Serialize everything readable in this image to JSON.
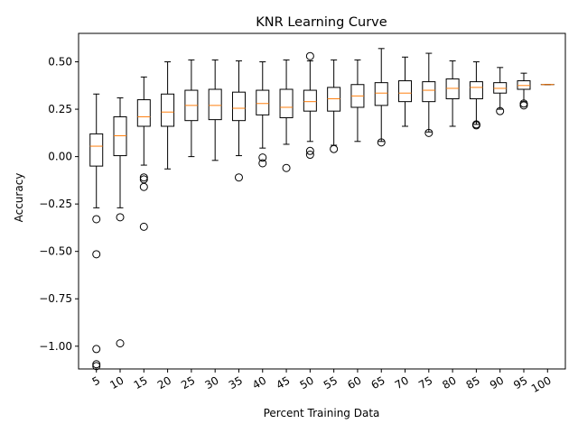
{
  "chart_data": {
    "type": "boxplot",
    "title": "KNR Learning Curve",
    "xlabel": "Percent Training Data",
    "ylabel": "Accuracy",
    "ylim": [
      -1.12,
      0.65
    ],
    "yticks": [
      0.5,
      0.25,
      0.0,
      -0.25,
      -0.5,
      -0.75,
      -1.0
    ],
    "ytick_labels": [
      "0.50",
      "0.25",
      "0.00",
      "−0.25",
      "−0.50",
      "−0.75",
      "−1.00"
    ],
    "categories": [
      "5",
      "10",
      "15",
      "20",
      "25",
      "30",
      "35",
      "40",
      "45",
      "50",
      "55",
      "60",
      "65",
      "70",
      "75",
      "80",
      "85",
      "90",
      "95",
      "100"
    ],
    "boxes": [
      {
        "whislo": -0.27,
        "q1": -0.05,
        "med": 0.055,
        "q3": 0.12,
        "whishi": 0.33,
        "fliers": [
          -0.33,
          -0.515,
          -1.015,
          -1.095,
          -1.105
        ]
      },
      {
        "whislo": -0.27,
        "q1": 0.005,
        "med": 0.11,
        "q3": 0.21,
        "whishi": 0.31,
        "fliers": [
          -0.32,
          -0.985
        ]
      },
      {
        "whislo": -0.045,
        "q1": 0.16,
        "med": 0.21,
        "q3": 0.3,
        "whishi": 0.42,
        "fliers": [
          -0.11,
          -0.12,
          -0.16,
          -0.37
        ]
      },
      {
        "whislo": -0.065,
        "q1": 0.16,
        "med": 0.235,
        "q3": 0.33,
        "whishi": 0.5,
        "fliers": []
      },
      {
        "whislo": 0.0,
        "q1": 0.19,
        "med": 0.27,
        "q3": 0.35,
        "whishi": 0.51,
        "fliers": []
      },
      {
        "whislo": -0.02,
        "q1": 0.195,
        "med": 0.27,
        "q3": 0.355,
        "whishi": 0.51,
        "fliers": []
      },
      {
        "whislo": 0.005,
        "q1": 0.19,
        "med": 0.255,
        "q3": 0.34,
        "whishi": 0.505,
        "fliers": [
          -0.11
        ]
      },
      {
        "whislo": 0.045,
        "q1": 0.22,
        "med": 0.28,
        "q3": 0.35,
        "whishi": 0.5,
        "fliers": [
          -0.005,
          -0.035
        ]
      },
      {
        "whislo": 0.065,
        "q1": 0.205,
        "med": 0.26,
        "q3": 0.355,
        "whishi": 0.51,
        "fliers": [
          -0.06
        ]
      },
      {
        "whislo": 0.08,
        "q1": 0.24,
        "med": 0.29,
        "q3": 0.35,
        "whishi": 0.505,
        "fliers": [
          0.53,
          0.03,
          0.01
        ]
      },
      {
        "whislo": 0.06,
        "q1": 0.24,
        "med": 0.305,
        "q3": 0.365,
        "whishi": 0.51,
        "fliers": [
          0.04
        ]
      },
      {
        "whislo": 0.08,
        "q1": 0.26,
        "med": 0.32,
        "q3": 0.38,
        "whishi": 0.51,
        "fliers": []
      },
      {
        "whislo": 0.08,
        "q1": 0.27,
        "med": 0.335,
        "q3": 0.39,
        "whishi": 0.57,
        "fliers": [
          0.075
        ]
      },
      {
        "whislo": 0.16,
        "q1": 0.29,
        "med": 0.335,
        "q3": 0.4,
        "whishi": 0.525,
        "fliers": []
      },
      {
        "whislo": 0.13,
        "q1": 0.29,
        "med": 0.35,
        "q3": 0.395,
        "whishi": 0.545,
        "fliers": [
          0.125
        ]
      },
      {
        "whislo": 0.16,
        "q1": 0.305,
        "med": 0.36,
        "q3": 0.41,
        "whishi": 0.505,
        "fliers": []
      },
      {
        "whislo": 0.17,
        "q1": 0.305,
        "med": 0.365,
        "q3": 0.395,
        "whishi": 0.5,
        "fliers": [
          0.165,
          0.17
        ]
      },
      {
        "whislo": 0.25,
        "q1": 0.335,
        "med": 0.36,
        "q3": 0.39,
        "whishi": 0.47,
        "fliers": [
          0.24
        ]
      },
      {
        "whislo": 0.29,
        "q1": 0.355,
        "med": 0.375,
        "q3": 0.4,
        "whishi": 0.44,
        "fliers": [
          0.27,
          0.28
        ]
      },
      {
        "whislo": 0.38,
        "q1": 0.38,
        "med": 0.38,
        "q3": 0.38,
        "whishi": 0.38,
        "fliers": []
      }
    ],
    "colors": {
      "box": "#000000",
      "median": "#ff7f0e",
      "axes": "#000000",
      "background": "#ffffff"
    },
    "grid": false,
    "legend": "none"
  }
}
